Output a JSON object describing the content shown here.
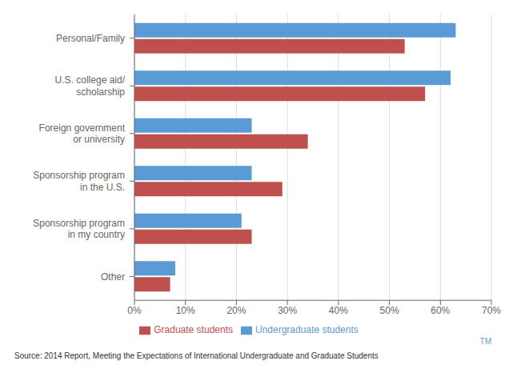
{
  "chart_data": {
    "type": "bar",
    "orientation": "horizontal",
    "categories": [
      "Other",
      "Sponsorship program\nin my country",
      "Sponsorship program\nin the U.S.",
      "Foreign government\nor university",
      "U.S. college aid/\nscholarship",
      "Personal/Family"
    ],
    "series": [
      {
        "name": "Undergraduate students",
        "color": "#5b9bd5",
        "values": [
          8,
          21,
          23,
          23,
          62,
          63
        ]
      },
      {
        "name": "Graduate students",
        "color": "#c0504d",
        "values": [
          7,
          23,
          29,
          34,
          57,
          53
        ]
      }
    ],
    "xlim": [
      0,
      70
    ],
    "xticks": [
      {
        "value": 0,
        "label": "0%"
      },
      {
        "value": 10,
        "label": "10%"
      },
      {
        "value": 20,
        "label": "20%"
      },
      {
        "value": 30,
        "label": "30%"
      },
      {
        "value": 40,
        "label": "40%"
      },
      {
        "value": 50,
        "label": "50%"
      },
      {
        "value": 60,
        "label": "60%"
      },
      {
        "value": 70,
        "label": "70%"
      }
    ],
    "grid": true,
    "legend": "bottom",
    "annotations": [
      "TM",
      "Source: 2014 Report, Meeting the Expectations of International Undergraduate and Graduate Students"
    ]
  }
}
